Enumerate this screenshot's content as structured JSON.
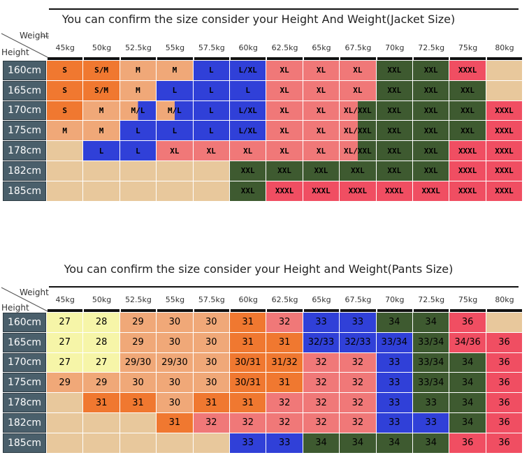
{
  "jacket": {
    "title": "You can confirm the size consider  your Height And Weight(Jacket Size)",
    "corner_weight": "Weight",
    "corner_height": "Height",
    "weights": [
      "45kg",
      "50kg",
      "52.5kg",
      "55kg",
      "57.5kg",
      "60kg",
      "62.5kg",
      "65kg",
      "67.5kg",
      "70kg",
      "72.5kg",
      "75kg",
      "80kg"
    ],
    "heights": [
      "160cm",
      "165cm",
      "170cm",
      "175cm",
      "178cm",
      "182cm",
      "185cm"
    ],
    "rows": [
      [
        "S",
        "S/M",
        "M",
        "M",
        "L",
        "L/XL",
        "XL",
        "XL",
        "XL",
        "XXL",
        "XXL",
        "XXXL",
        ""
      ],
      [
        "S",
        "S/M",
        "M",
        "L",
        "L",
        "L",
        "XL",
        "XL",
        "XL",
        "XXL",
        "XXL",
        "XXL",
        ""
      ],
      [
        "S",
        "M",
        "M/L",
        "M/L",
        "L",
        "L/XL",
        "XL",
        "XL",
        "XL/XXL",
        "XXL",
        "XXL",
        "XXL",
        "XXXL"
      ],
      [
        "M",
        "M",
        "L",
        "L",
        "L",
        "L/XL",
        "XL",
        "XL",
        "XL/XXL",
        "XXL",
        "XXL",
        "XXL",
        "XXXL"
      ],
      [
        "",
        "L",
        "L",
        "XL",
        "XL",
        "XL",
        "XL",
        "XL",
        "XL/XXL",
        "XXL",
        "XXL",
        "XXXL",
        "XXXL"
      ],
      [
        "",
        "",
        "",
        "",
        "",
        "XXL",
        "XXL",
        "XXL",
        "XXL",
        "XXL",
        "XXL",
        "XXXL",
        "XXXL"
      ],
      [
        "",
        "",
        "",
        "",
        "",
        "XXL",
        "XXXL",
        "XXXL",
        "XXXL",
        "XXXL",
        "XXXL",
        "XXXL",
        "XXXL"
      ]
    ],
    "colors": [
      [
        "o",
        "o",
        "t",
        "t",
        "b",
        "b",
        "p",
        "p",
        "p",
        "g",
        "g",
        "r",
        "n"
      ],
      [
        "o",
        "o",
        "t",
        "b",
        "b",
        "b",
        "p",
        "p",
        "p",
        "g",
        "g",
        "g",
        "n"
      ],
      [
        "o",
        "t",
        "tb",
        "tb",
        "b",
        "b",
        "p",
        "p",
        "pg",
        "g",
        "g",
        "g",
        "r"
      ],
      [
        "t",
        "t",
        "b",
        "b",
        "b",
        "b",
        "p",
        "p",
        "pg",
        "g",
        "g",
        "g",
        "r"
      ],
      [
        "n",
        "b",
        "b",
        "p",
        "p",
        "p",
        "p",
        "p",
        "pg",
        "g",
        "g",
        "r",
        "r"
      ],
      [
        "n",
        "n",
        "n",
        "n",
        "n",
        "g",
        "g",
        "g",
        "g",
        "g",
        "g",
        "r",
        "r"
      ],
      [
        "n",
        "n",
        "n",
        "n",
        "n",
        "g",
        "r",
        "r",
        "r",
        "r",
        "r",
        "r",
        "r"
      ]
    ]
  },
  "pants": {
    "title": "You can confirm the size consider your Height and Weight(Pants Size)",
    "corner_weight": "Weight",
    "corner_height": "Height",
    "weights": [
      "45kg",
      "50kg",
      "52.5kg",
      "55kg",
      "57.5kg",
      "60kg",
      "62.5kg",
      "65kg",
      "67.5kg",
      "70kg",
      "72.5kg",
      "75kg",
      "80kg"
    ],
    "heights": [
      "160cm",
      "165cm",
      "170cm",
      "175cm",
      "178cm",
      "182cm",
      "185cm"
    ],
    "rows": [
      [
        "27",
        "28",
        "29",
        "30",
        "30",
        "31",
        "32",
        "33",
        "33",
        "34",
        "34",
        "36",
        ""
      ],
      [
        "27",
        "28",
        "29",
        "30",
        "30",
        "31",
        "31",
        "32/33",
        "32/33",
        "33/34",
        "33/34",
        "34/36",
        "36"
      ],
      [
        "27",
        "27",
        "29/30",
        "29/30",
        "30",
        "30/31",
        "31/32",
        "32",
        "32",
        "33",
        "33/34",
        "34",
        "36"
      ],
      [
        "29",
        "29",
        "30",
        "30",
        "30",
        "30/31",
        "31",
        "32",
        "32",
        "33",
        "33/34",
        "34",
        "36"
      ],
      [
        "",
        "31",
        "31",
        "30",
        "31",
        "31",
        "32",
        "32",
        "32",
        "33",
        "33",
        "34",
        "36"
      ],
      [
        "",
        "",
        "",
        "31",
        "32",
        "32",
        "32",
        "32",
        "32",
        "33",
        "33",
        "34",
        "36"
      ],
      [
        "",
        "",
        "",
        "",
        "",
        "33",
        "33",
        "34",
        "34",
        "34",
        "34",
        "36",
        "36"
      ]
    ],
    "colors": [
      [
        "y",
        "y",
        "t",
        "t",
        "t",
        "o",
        "p",
        "b",
        "b",
        "g",
        "g",
        "r",
        "n"
      ],
      [
        "y",
        "y",
        "t",
        "t",
        "t",
        "o",
        "o",
        "b",
        "b",
        "b",
        "g",
        "r",
        "r"
      ],
      [
        "y",
        "y",
        "t",
        "t",
        "t",
        "o",
        "o",
        "p",
        "p",
        "b",
        "g",
        "g",
        "r"
      ],
      [
        "t",
        "t",
        "t",
        "t",
        "t",
        "o",
        "o",
        "p",
        "p",
        "b",
        "g",
        "g",
        "r"
      ],
      [
        "n",
        "o",
        "o",
        "t",
        "o",
        "o",
        "p",
        "p",
        "p",
        "b",
        "g",
        "g",
        "r"
      ],
      [
        "n",
        "n",
        "n",
        "o",
        "p",
        "p",
        "p",
        "p",
        "p",
        "b",
        "b",
        "g",
        "r"
      ],
      [
        "n",
        "n",
        "n",
        "n",
        "n",
        "b",
        "b",
        "g",
        "g",
        "g",
        "g",
        "r",
        "r"
      ]
    ]
  },
  "palette": {
    "o": "#f07830",
    "t": "#f0a878",
    "b": "#3040d8",
    "p": "#f07878",
    "g": "#3e5a30",
    "r": "#f04e62",
    "n": "#e8c89c",
    "y": "#f6f5a8",
    "row_header": "#4a5f6b"
  }
}
